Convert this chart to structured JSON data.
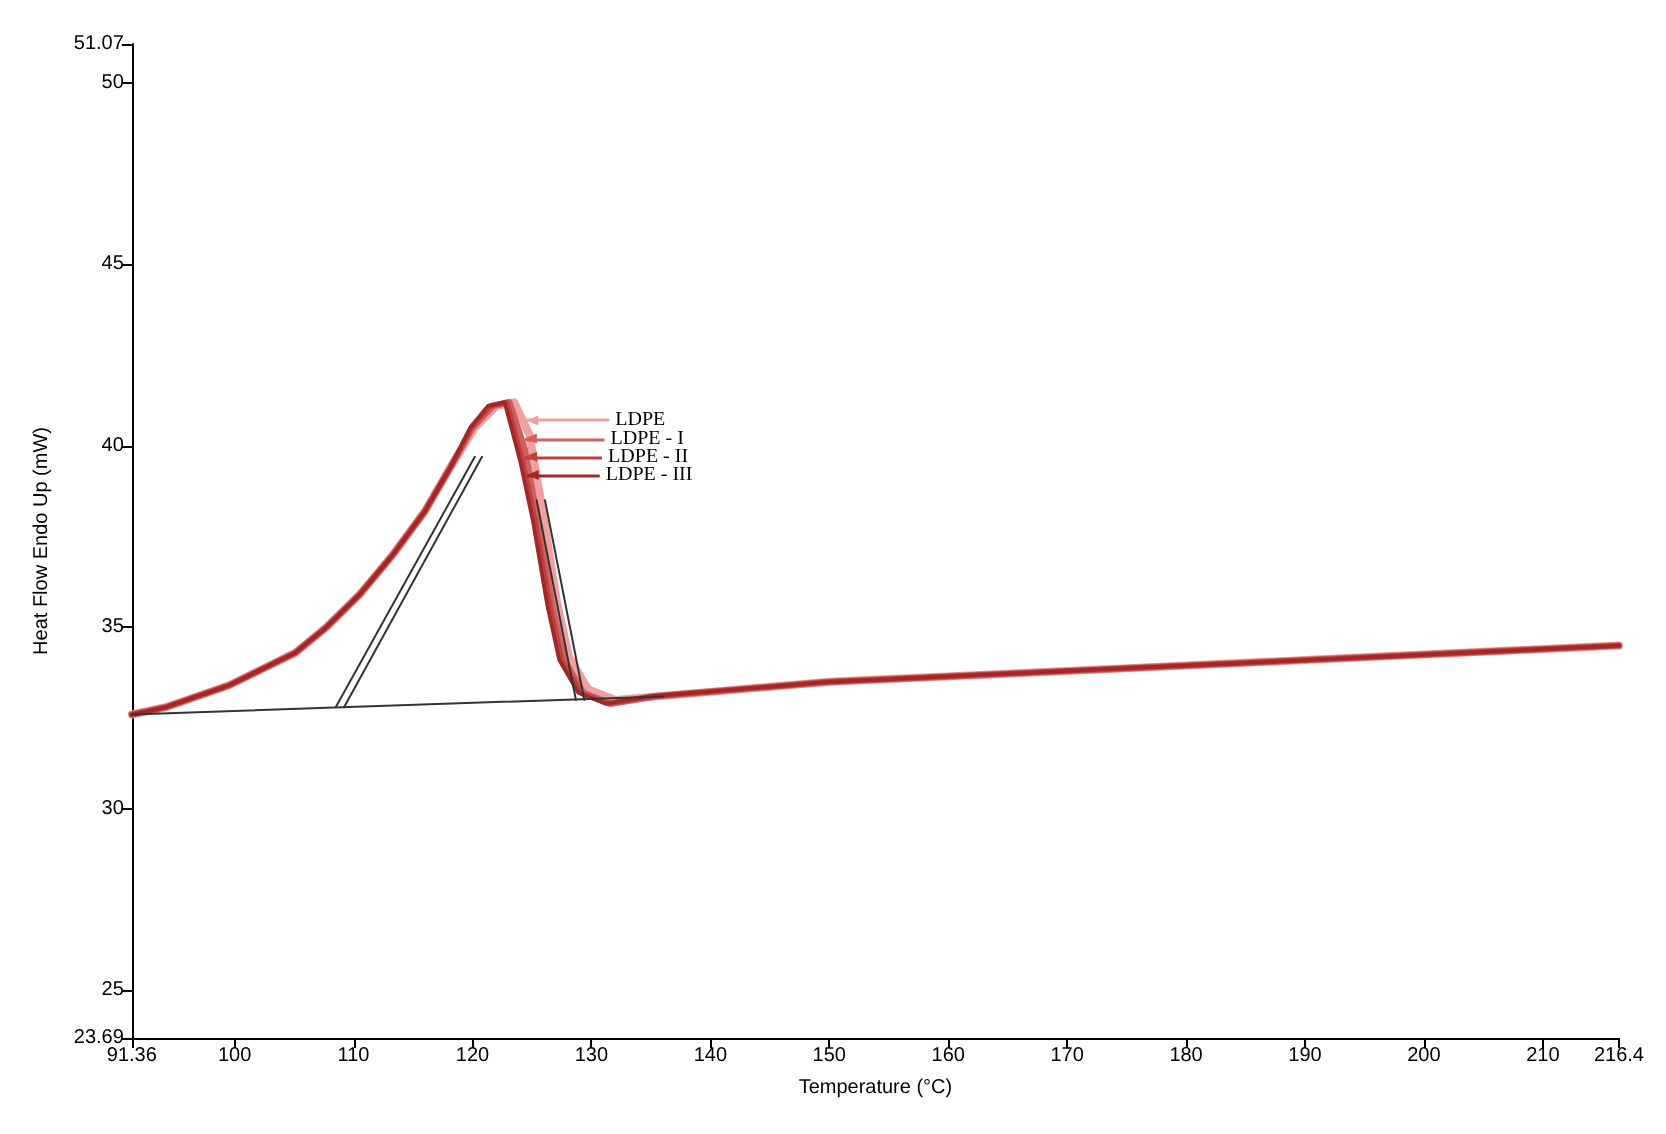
{
  "chart_data": {
    "type": "line",
    "xlabel": "Temperature (°C)",
    "ylabel": "Heat Flow Endo Up (mW)",
    "xlim": [
      91.36,
      216.4
    ],
    "ylim": [
      23.69,
      51.07
    ],
    "xticks": [
      91.36,
      100,
      110,
      120,
      130,
      140,
      150,
      160,
      170,
      180,
      190,
      200,
      210,
      216.4
    ],
    "yticks": [
      23.69,
      25,
      30,
      35,
      40,
      45,
      50,
      51.07
    ],
    "grid": false,
    "legend": "top",
    "marker": "none",
    "line_style": "solid",
    "series": [
      {
        "name": "LDPE",
        "color": "#f0a0a0",
        "x": [
          91.36,
          94.2,
          99.5,
          105.1,
          107.7,
          110.5,
          113.3,
          116,
          118.3,
          120.2,
          122,
          123.5,
          124.8,
          125.9,
          127.1,
          128.1,
          129.7,
          132,
          135.5,
          150,
          170,
          190,
          216.4
        ],
        "values": [
          32.6,
          32.8,
          33.4,
          34.3,
          35.0,
          35.9,
          37.0,
          38.2,
          39.5,
          40.5,
          41.1,
          41.2,
          40.3,
          38.2,
          35.7,
          34.2,
          33.3,
          33.0,
          33.1,
          33.5,
          33.8,
          34.1,
          34.5
        ]
      },
      {
        "name": "LDPE - I",
        "color": "#d06060",
        "x": [
          91.36,
          94.2,
          99.5,
          105.1,
          107.7,
          110.5,
          113.3,
          116,
          118.3,
          120,
          121.7,
          123.1,
          124.4,
          125.5,
          126.7,
          127.7,
          129.3,
          131.6,
          135.3,
          150,
          170,
          190,
          216.4
        ],
        "values": [
          32.6,
          32.8,
          33.4,
          34.3,
          35.0,
          35.9,
          37.0,
          38.2,
          39.5,
          40.5,
          41.1,
          41.2,
          39.9,
          37.9,
          35.6,
          34.1,
          33.2,
          32.9,
          33.1,
          33.5,
          33.8,
          34.1,
          34.5
        ]
      },
      {
        "name": "LDPE - II",
        "color": "#c04040",
        "x": [
          91.36,
          94.2,
          99.5,
          105.1,
          107.7,
          110.5,
          113.3,
          116,
          118.3,
          119.9,
          121.5,
          122.9,
          124.2,
          125.3,
          126.5,
          127.5,
          129.1,
          131.4,
          135.2,
          150,
          170,
          190,
          216.4
        ],
        "values": [
          32.6,
          32.8,
          33.4,
          34.3,
          35.0,
          35.9,
          37.0,
          38.2,
          39.5,
          40.5,
          41.1,
          41.2,
          39.6,
          37.9,
          35.6,
          34.1,
          33.2,
          32.9,
          33.1,
          33.5,
          33.8,
          34.1,
          34.5
        ]
      },
      {
        "name": "LDPE - III",
        "color": "#a02828",
        "x": [
          91.36,
          94.2,
          99.5,
          105.1,
          107.7,
          110.5,
          113.3,
          116,
          118.3,
          119.8,
          121.3,
          122.7,
          124,
          125.1,
          126.3,
          127.3,
          128.9,
          131.2,
          135,
          150,
          170,
          190,
          216.4
        ],
        "values": [
          32.6,
          32.8,
          33.4,
          34.3,
          35.0,
          35.9,
          37.0,
          38.2,
          39.5,
          40.5,
          41.1,
          41.2,
          39.6,
          37.9,
          35.6,
          34.1,
          33.2,
          32.9,
          33.1,
          33.5,
          33.8,
          34.1,
          34.5
        ]
      },
      {
        "color": "#333333",
        "x": [
          91.36,
          136
        ],
        "values": [
          32.6,
          33.1
        ]
      },
      {
        "color": "#333333",
        "x": [
          108.5,
          120.2
        ],
        "values": [
          32.8,
          39.7
        ]
      },
      {
        "color": "#333333",
        "x": [
          109.2,
          120.8
        ],
        "values": [
          32.8,
          39.7
        ]
      },
      {
        "color": "#333333",
        "x": [
          128.7,
          125.4
        ],
        "values": [
          33.0,
          38.5
        ]
      },
      {
        "color": "#333333",
        "x": [
          129.4,
          126.1
        ],
        "values": [
          33.0,
          38.5
        ]
      }
    ]
  }
}
